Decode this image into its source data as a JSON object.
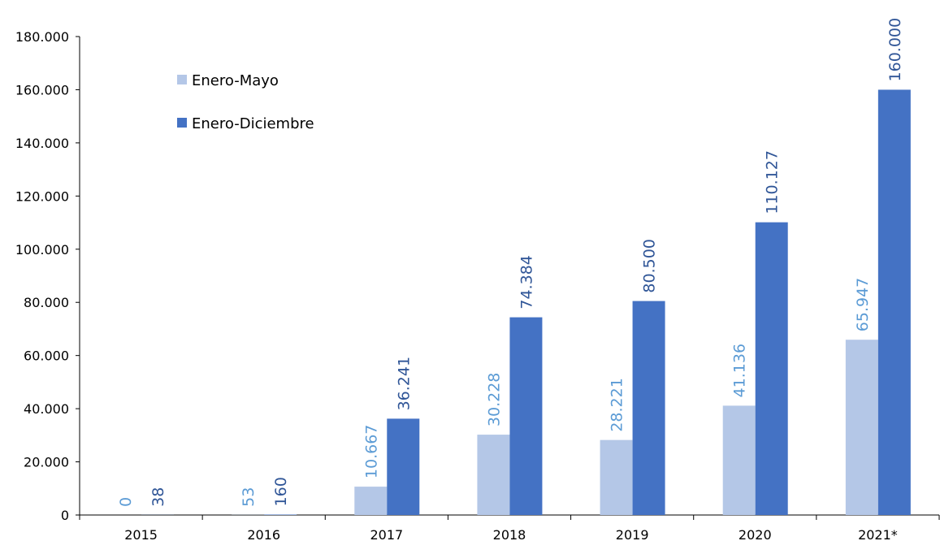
{
  "colors": {
    "series_1": "#b4c7e7",
    "series_1_label": "#5b9bd5",
    "series_2": "#4472c4",
    "series_2_label": "#2f5597",
    "axis": "#000000"
  },
  "chart_data": {
    "type": "bar",
    "title": "",
    "xlabel": "",
    "ylabel": "",
    "categories": [
      "2015",
      "2016",
      "2017",
      "2018",
      "2019",
      "2020",
      "2021*"
    ],
    "series": [
      {
        "name": "Enero-Mayo",
        "values": [
          0,
          53,
          10667,
          30228,
          28221,
          41136,
          65947
        ],
        "labels": [
          "0",
          "53",
          "10.667",
          "30.228",
          "28.221",
          "41.136",
          "65.947"
        ]
      },
      {
        "name": "Enero-Diciembre",
        "values": [
          38,
          160,
          36241,
          74384,
          80500,
          110127,
          160000
        ],
        "labels": [
          "38",
          "160",
          "36.241",
          "74.384",
          "80.500",
          "110.127",
          "160.000"
        ]
      }
    ],
    "ylim": [
      0,
      180000
    ],
    "yticks": [
      0,
      20000,
      40000,
      60000,
      80000,
      100000,
      120000,
      140000,
      160000,
      180000
    ],
    "ytick_labels": [
      "0",
      "20.000",
      "40.000",
      "60.000",
      "80.000",
      "100.000",
      "120.000",
      "140.000",
      "160.000",
      "180.000"
    ],
    "grid": false,
    "legend_position": "top-left",
    "data_labels_rotated": true
  }
}
